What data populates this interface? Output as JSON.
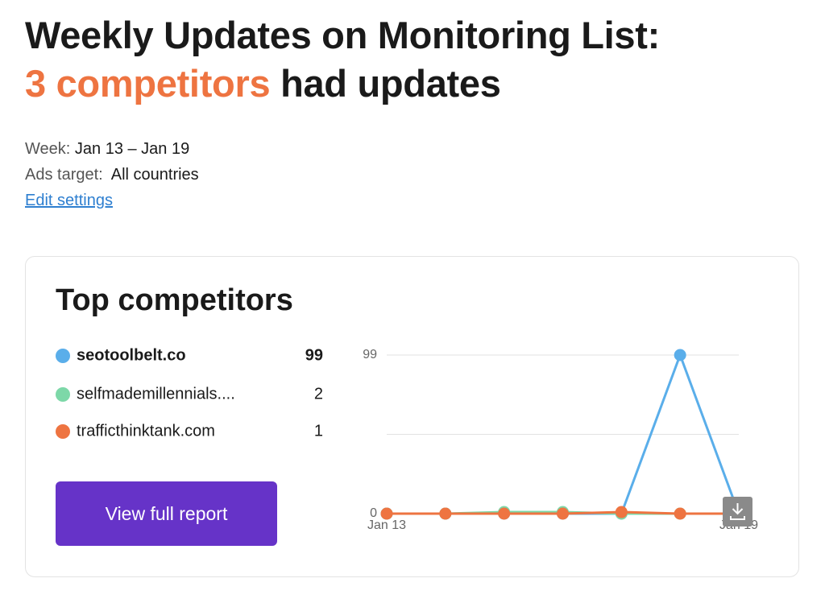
{
  "header": {
    "title": "Weekly Updates on Monitoring List:",
    "highlight": "3 competitors",
    "title_end": "had updates"
  },
  "meta": {
    "week_label": "Week:",
    "week_value": "Jan 13 – Jan 19",
    "target_label": "Ads target:",
    "target_value": "All countries",
    "edit_link": "Edit settings"
  },
  "card": {
    "title": "Top competitors",
    "button": "View full report"
  },
  "chart_data": {
    "type": "line",
    "x": [
      "Jan 13",
      null,
      null,
      null,
      null,
      null,
      "Jan 19"
    ],
    "ylim": [
      0,
      99
    ],
    "yticks": [
      0,
      99
    ],
    "grid": true,
    "series": [
      {
        "name": "seotoolbelt.co",
        "total": 99,
        "color": "#5aaeea",
        "values": [
          0,
          0,
          0,
          0,
          0,
          99,
          0
        ]
      },
      {
        "name": "selfmademillennials....",
        "total": 2,
        "color": "#7dd8a8",
        "values": [
          0,
          0,
          1,
          1,
          0,
          0,
          0
        ]
      },
      {
        "name": "trafficthinktank.com",
        "total": 1,
        "color": "#ee7441",
        "values": [
          0,
          0,
          0,
          0,
          1,
          0,
          0
        ]
      }
    ]
  }
}
